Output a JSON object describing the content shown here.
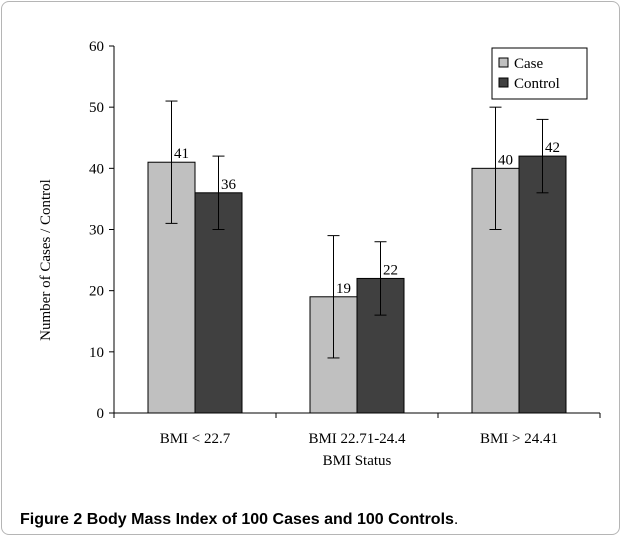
{
  "chart_data": {
    "type": "bar",
    "categories": [
      "BMI < 22.7",
      "BMI 22.71-24.4",
      "BMI > 24.41"
    ],
    "series": [
      {
        "name": "Case",
        "values": [
          41,
          19,
          40
        ],
        "error": [
          10,
          10,
          10
        ],
        "color": "#c0c0c0"
      },
      {
        "name": "Control",
        "values": [
          36,
          22,
          42
        ],
        "error": [
          6,
          6,
          6
        ],
        "color": "#404040"
      }
    ],
    "xlabel": "BMI Status",
    "ylabel": "Number of Cases / Control",
    "ylim": [
      0,
      60
    ],
    "yticks": [
      0,
      10,
      20,
      30,
      40,
      50,
      60
    ],
    "legend": "top-right",
    "grid": false
  },
  "caption": {
    "label": "Figure 2",
    "text": "Body Mass Index of 100 Cases and 100 Controls",
    "end": "."
  }
}
